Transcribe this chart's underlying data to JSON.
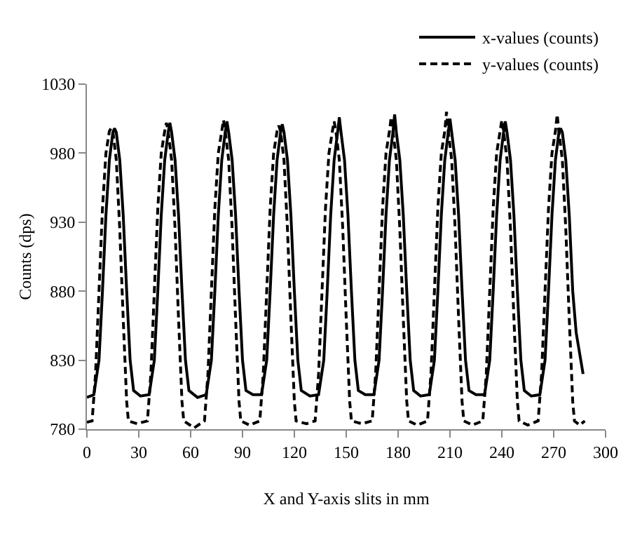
{
  "chart_data": {
    "type": "line",
    "xlabel": "X and Y-axis slits in mm",
    "ylabel": "Counts (dps)",
    "xlim": [
      0,
      300
    ],
    "xticks": [
      0,
      30,
      60,
      90,
      120,
      150,
      180,
      210,
      240,
      270,
      300
    ],
    "ylim": [
      780,
      1030
    ],
    "yticks": [
      780,
      830,
      880,
      930,
      980,
      1030
    ],
    "legend": "top right",
    "marker": "none",
    "series": [
      {
        "name": "x-values (counts)",
        "color": "#000000",
        "line_style": "solid",
        "x": [
          0,
          4,
          7,
          9,
          11,
          13,
          15,
          16,
          17,
          19,
          21,
          23,
          25,
          27,
          31,
          36,
          39,
          41,
          43,
          45,
          47,
          48,
          49,
          51,
          53,
          55,
          57,
          59,
          64,
          69,
          72,
          74,
          76,
          78,
          80,
          81,
          82,
          84,
          86,
          88,
          90,
          92,
          96,
          101,
          104,
          106,
          108,
          110,
          112,
          113,
          114,
          116,
          118,
          120,
          122,
          124,
          129,
          134,
          137,
          139,
          141,
          143,
          145,
          146,
          147,
          149,
          151,
          153,
          155,
          157,
          161,
          166,
          169,
          171,
          173,
          175,
          177,
          178,
          179,
          181,
          183,
          185,
          187,
          189,
          193,
          198,
          201,
          203,
          205,
          207,
          209,
          210,
          211,
          213,
          215,
          217,
          219,
          221,
          225,
          230,
          233,
          235,
          237,
          239,
          241,
          242,
          243,
          245,
          247,
          249,
          251,
          253,
          257,
          262,
          265,
          267,
          269,
          271,
          273,
          274,
          275,
          277,
          279,
          281,
          283,
          287
        ],
        "values": [
          803,
          805,
          830,
          880,
          935,
          975,
          995,
          998,
          995,
          975,
          935,
          880,
          830,
          808,
          804,
          805,
          830,
          880,
          935,
          975,
          995,
          1002,
          995,
          975,
          935,
          880,
          830,
          808,
          803,
          805,
          830,
          880,
          935,
          975,
          995,
          1003,
          995,
          975,
          935,
          880,
          830,
          808,
          805,
          805,
          830,
          880,
          935,
          975,
          995,
          1001,
          995,
          975,
          935,
          880,
          830,
          808,
          804,
          805,
          830,
          880,
          935,
          975,
          995,
          1006,
          995,
          975,
          935,
          880,
          830,
          808,
          805,
          805,
          830,
          880,
          935,
          975,
          995,
          1008,
          995,
          975,
          935,
          880,
          830,
          808,
          804,
          805,
          830,
          880,
          935,
          975,
          995,
          1005,
          995,
          975,
          935,
          880,
          830,
          808,
          805,
          805,
          830,
          880,
          935,
          975,
          995,
          1003,
          995,
          975,
          935,
          880,
          830,
          808,
          804,
          805,
          830,
          880,
          935,
          975,
          995,
          998,
          995,
          975,
          935,
          880,
          850,
          820
        ]
      },
      {
        "name": "y-values (counts)",
        "color": "#000000",
        "line_style": "dashed",
        "x": [
          0,
          3,
          5,
          7,
          9,
          11,
          13,
          14,
          15,
          17,
          19,
          21,
          23,
          24,
          29,
          35,
          37,
          39,
          41,
          43,
          45,
          46,
          47,
          49,
          51,
          53,
          55,
          56,
          62,
          68,
          70,
          72,
          74,
          76,
          78,
          79,
          80,
          82,
          84,
          86,
          88,
          89,
          94,
          100,
          102,
          104,
          106,
          108,
          110,
          111,
          112,
          114,
          116,
          118,
          120,
          121,
          127,
          132,
          134,
          136,
          138,
          140,
          142,
          143,
          144,
          146,
          148,
          150,
          152,
          153,
          159,
          165,
          167,
          169,
          171,
          173,
          175,
          176,
          177,
          179,
          181,
          183,
          185,
          186,
          191,
          197,
          199,
          201,
          203,
          205,
          207,
          208,
          209,
          211,
          213,
          215,
          217,
          218,
          223,
          229,
          231,
          233,
          235,
          237,
          239,
          240,
          241,
          243,
          245,
          247,
          249,
          250,
          255,
          261,
          263,
          265,
          267,
          269,
          271,
          272,
          273,
          275,
          277,
          279,
          281,
          282,
          285,
          288
        ],
        "values": [
          785,
          786,
          820,
          880,
          940,
          980,
          996,
          998,
          996,
          975,
          925,
          860,
          800,
          786,
          784,
          786,
          820,
          880,
          940,
          980,
          996,
          1002,
          996,
          975,
          925,
          860,
          800,
          786,
          781,
          786,
          820,
          880,
          940,
          980,
          996,
          1004,
          996,
          975,
          925,
          860,
          800,
          786,
          783,
          786,
          820,
          880,
          940,
          980,
          996,
          1000,
          996,
          975,
          925,
          860,
          800,
          786,
          784,
          786,
          820,
          880,
          940,
          980,
          996,
          1003,
          996,
          975,
          925,
          860,
          800,
          786,
          784,
          786,
          820,
          880,
          940,
          980,
          996,
          1006,
          996,
          975,
          925,
          860,
          800,
          786,
          783,
          786,
          820,
          880,
          940,
          980,
          996,
          1010,
          996,
          975,
          925,
          860,
          800,
          786,
          783,
          786,
          820,
          880,
          940,
          980,
          996,
          1004,
          996,
          975,
          925,
          860,
          800,
          786,
          783,
          786,
          820,
          880,
          940,
          980,
          996,
          1008,
          996,
          975,
          925,
          860,
          800,
          786,
          783,
          786
        ]
      }
    ]
  }
}
